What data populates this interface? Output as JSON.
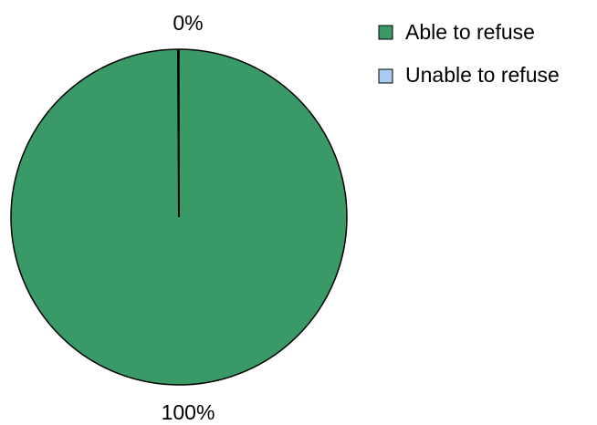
{
  "chart_data": {
    "type": "pie",
    "title": "",
    "categories": [
      "Able to refuse",
      "Unable to refuse"
    ],
    "values": [
      100,
      0
    ],
    "value_labels": [
      "100%",
      "0%"
    ],
    "colors": [
      "#3a9a67",
      "#a9cdf2"
    ],
    "legend": {
      "placement": "top-right",
      "entries": [
        "Able to refuse",
        "Unable to refuse"
      ]
    }
  }
}
